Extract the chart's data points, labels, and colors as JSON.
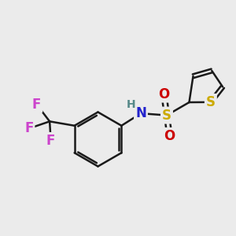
{
  "background_color": "#ebebeb",
  "bond_color": "#1a1a1a",
  "bond_width": 1.8,
  "atom_colors": {
    "S_thiophene": "#ccaa00",
    "S_sulfonyl": "#ccaa00",
    "N": "#2222cc",
    "O": "#cc0000",
    "F": "#cc44cc",
    "H": "#558888",
    "C": "#1a1a1a"
  },
  "font_size": 11,
  "fig_width": 3.0,
  "fig_height": 3.0,
  "dpi": 100
}
